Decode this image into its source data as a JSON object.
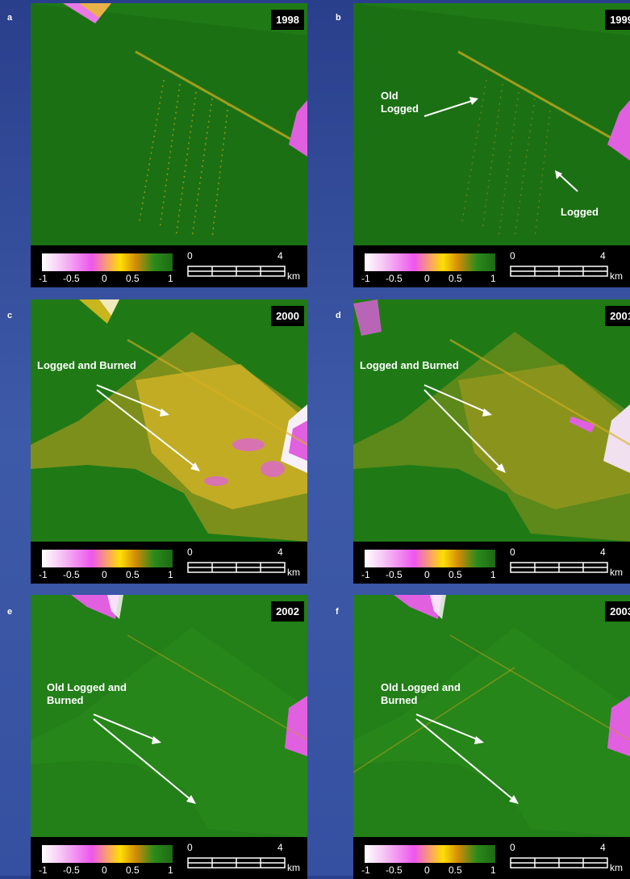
{
  "panels": [
    {
      "letter": "a",
      "year": "1998",
      "annotation": "",
      "scale": {
        "colorbar_ticks": [
          "-1",
          "-0.5",
          "0",
          "0.5",
          "1"
        ],
        "distance_start": "0",
        "distance_end": "4",
        "unit": "km"
      }
    },
    {
      "letter": "b",
      "year": "1999",
      "annotation": "Old\nLogged",
      "annotation2": "Logged",
      "scale": {
        "colorbar_ticks": [
          "-1",
          "-0.5",
          "0",
          "0.5",
          "1"
        ],
        "distance_start": "0",
        "distance_end": "4",
        "unit": "km"
      }
    },
    {
      "letter": "c",
      "year": "2000",
      "annotation": "Logged and Burned",
      "scale": {
        "colorbar_ticks": [
          "-1",
          "-0.5",
          "0",
          "0.5",
          "1"
        ],
        "distance_start": "0",
        "distance_end": "4",
        "unit": "km"
      }
    },
    {
      "letter": "d",
      "year": "2001",
      "annotation": "Logged and Burned",
      "scale": {
        "colorbar_ticks": [
          "-1",
          "-0.5",
          "0",
          "0.5",
          "1"
        ],
        "distance_start": "0",
        "distance_end": "4",
        "unit": "km"
      }
    },
    {
      "letter": "e",
      "year": "2002",
      "annotation": "Old Logged and\nBurned",
      "scale": {
        "colorbar_ticks": [
          "-1",
          "-0.5",
          "0",
          "0.5",
          "1"
        ],
        "distance_start": "0",
        "distance_end": "4",
        "unit": "km"
      }
    },
    {
      "letter": "f",
      "year": "2003",
      "annotation": "Old Logged and\nBurned",
      "scale": {
        "colorbar_ticks": [
          "-1",
          "-0.5",
          "0",
          "0.5",
          "1"
        ],
        "distance_start": "0",
        "distance_end": "4",
        "unit": "km"
      }
    }
  ],
  "colors": {
    "background": "#3550a0",
    "forest": "#1f7a16",
    "degraded": "#d4a81a",
    "cleared": "#e055e0"
  }
}
